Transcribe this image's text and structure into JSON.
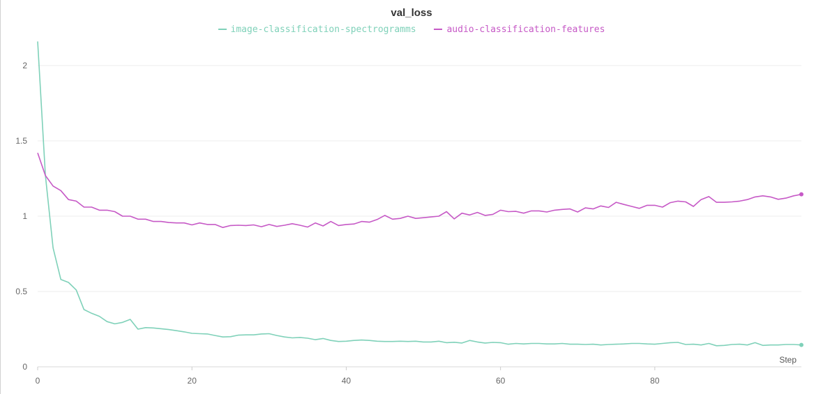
{
  "chart_data": {
    "type": "line",
    "title": "val_loss",
    "xlabel": "Step",
    "ylabel": "",
    "xlim": [
      0,
      99
    ],
    "ylim": [
      0,
      2.2
    ],
    "x_ticks": [
      "0",
      "20",
      "40",
      "60",
      "80"
    ],
    "y_ticks": [
      "0",
      "0.5",
      "1",
      "1.5",
      "2"
    ],
    "legend_position": "top-center",
    "grid": true,
    "series": [
      {
        "name": "image-classification-spectrogramms",
        "color": "#7fd1b9",
        "values": [
          2.16,
          1.27,
          0.79,
          0.58,
          0.56,
          0.51,
          0.38,
          0.355,
          0.335,
          0.3,
          0.285,
          0.295,
          0.315,
          0.25,
          0.26,
          0.258,
          0.253,
          0.247,
          0.24,
          0.232,
          0.222,
          0.22,
          0.218,
          0.208,
          0.198,
          0.2,
          0.21,
          0.212,
          0.212,
          0.218,
          0.22,
          0.208,
          0.198,
          0.192,
          0.195,
          0.19,
          0.18,
          0.188,
          0.175,
          0.168,
          0.17,
          0.175,
          0.178,
          0.175,
          0.17,
          0.168,
          0.168,
          0.17,
          0.168,
          0.17,
          0.165,
          0.165,
          0.17,
          0.16,
          0.163,
          0.158,
          0.175,
          0.165,
          0.158,
          0.162,
          0.16,
          0.15,
          0.155,
          0.152,
          0.155,
          0.155,
          0.152,
          0.152,
          0.155,
          0.15,
          0.15,
          0.148,
          0.15,
          0.145,
          0.148,
          0.15,
          0.152,
          0.155,
          0.155,
          0.152,
          0.15,
          0.155,
          0.16,
          0.162,
          0.148,
          0.15,
          0.145,
          0.155,
          0.14,
          0.142,
          0.148,
          0.15,
          0.145,
          0.16,
          0.142,
          0.145,
          0.145,
          0.148,
          0.148,
          0.145
        ]
      },
      {
        "name": "audio-classification-features",
        "color": "#c659c6",
        "values": [
          1.42,
          1.27,
          1.2,
          1.17,
          1.11,
          1.1,
          1.06,
          1.06,
          1.04,
          1.04,
          1.03,
          1.0,
          1.0,
          0.98,
          0.98,
          0.965,
          0.965,
          0.958,
          0.955,
          0.955,
          0.942,
          0.955,
          0.945,
          0.945,
          0.925,
          0.938,
          0.94,
          0.938,
          0.942,
          0.93,
          0.945,
          0.932,
          0.94,
          0.95,
          0.94,
          0.928,
          0.955,
          0.935,
          0.965,
          0.938,
          0.945,
          0.948,
          0.965,
          0.96,
          0.978,
          1.005,
          0.98,
          0.985,
          1.0,
          0.985,
          0.99,
          0.995,
          1.0,
          1.03,
          0.982,
          1.02,
          1.008,
          1.025,
          1.005,
          1.012,
          1.04,
          1.03,
          1.032,
          1.02,
          1.035,
          1.035,
          1.028,
          1.04,
          1.045,
          1.048,
          1.028,
          1.055,
          1.048,
          1.068,
          1.058,
          1.092,
          1.078,
          1.065,
          1.052,
          1.072,
          1.072,
          1.06,
          1.09,
          1.1,
          1.095,
          1.065,
          1.11,
          1.13,
          1.092,
          1.092,
          1.095,
          1.1,
          1.11,
          1.128,
          1.135,
          1.128,
          1.112,
          1.12,
          1.135,
          1.145
        ]
      }
    ]
  }
}
